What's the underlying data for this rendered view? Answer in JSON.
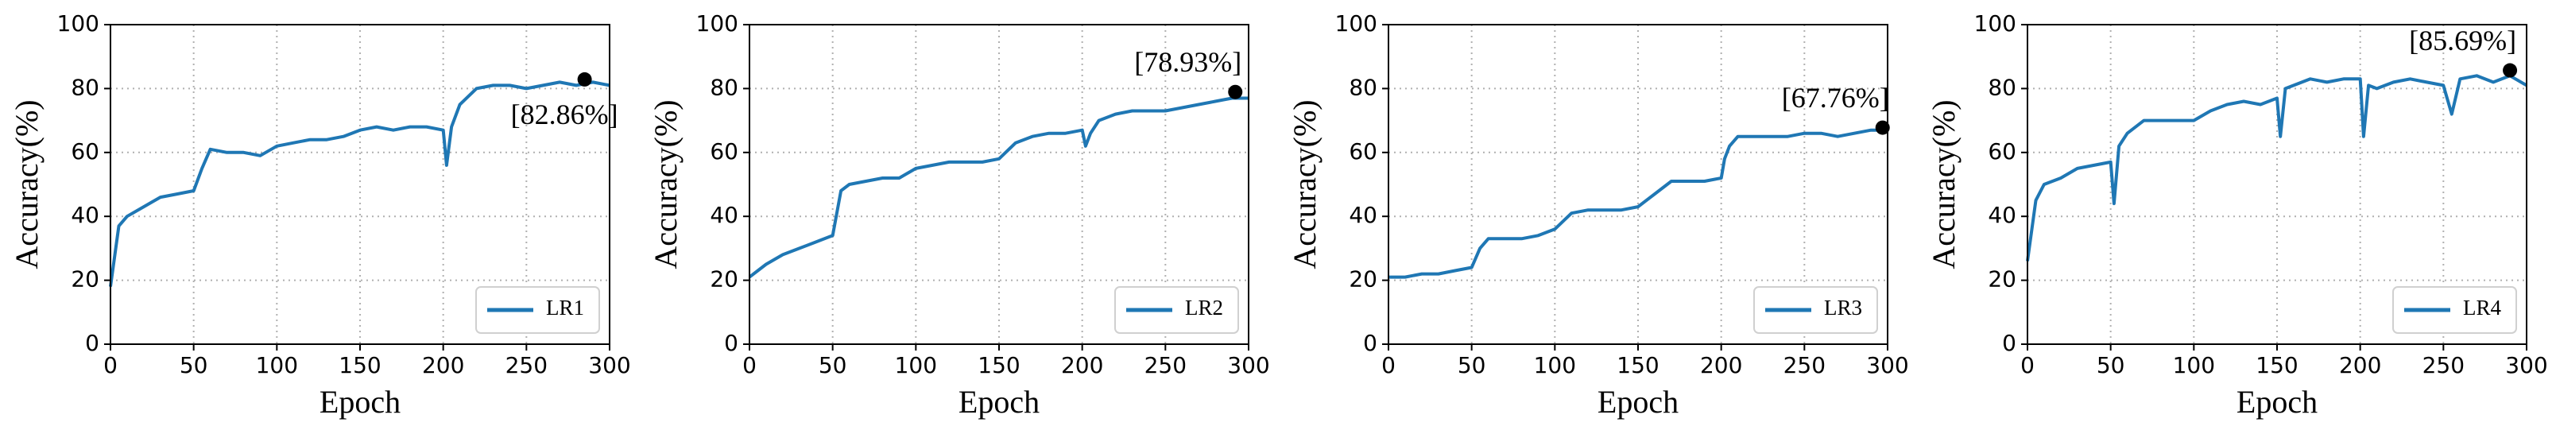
{
  "chart_data": [
    {
      "type": "line",
      "xlabel": "Epoch",
      "ylabel": "Accuracy(%)",
      "x": [
        0,
        5,
        10,
        20,
        30,
        40,
        50,
        55,
        60,
        70,
        80,
        90,
        100,
        110,
        120,
        130,
        140,
        150,
        160,
        170,
        180,
        190,
        200,
        202,
        205,
        210,
        220,
        230,
        240,
        250,
        260,
        270,
        280,
        290,
        300
      ],
      "series": [
        {
          "name": "LR1",
          "color": "#1f77b4",
          "values": [
            18,
            37,
            40,
            43,
            46,
            47,
            48,
            55,
            61,
            60,
            60,
            59,
            62,
            63,
            64,
            64,
            65,
            67,
            68,
            67,
            68,
            68,
            67,
            56,
            68,
            75,
            80,
            81,
            81,
            80,
            81,
            82,
            81,
            82,
            81
          ]
        }
      ],
      "annotations": [
        {
          "text": "[82.86%]",
          "x": 285,
          "y": 82.86
        }
      ],
      "xlim": [
        0,
        300
      ],
      "xticks": [
        0,
        50,
        100,
        150,
        200,
        250,
        300
      ],
      "ylim": [
        0,
        100
      ],
      "yticks": [
        0,
        20,
        40,
        60,
        80,
        100
      ],
      "grid": true,
      "legend": "lower right"
    },
    {
      "type": "line",
      "xlabel": "Epoch",
      "ylabel": "Accuracy(%)",
      "x": [
        0,
        5,
        10,
        20,
        30,
        40,
        50,
        55,
        60,
        70,
        80,
        90,
        100,
        110,
        120,
        130,
        140,
        150,
        160,
        170,
        180,
        190,
        200,
        202,
        205,
        210,
        220,
        230,
        240,
        250,
        260,
        270,
        280,
        290,
        300
      ],
      "series": [
        {
          "name": "LR2",
          "color": "#1f77b4",
          "values": [
            21,
            23,
            25,
            28,
            30,
            32,
            34,
            48,
            50,
            51,
            52,
            52,
            55,
            56,
            57,
            57,
            57,
            58,
            63,
            65,
            66,
            66,
            67,
            62,
            66,
            70,
            72,
            73,
            73,
            73,
            74,
            75,
            76,
            77,
            77
          ]
        }
      ],
      "annotations": [
        {
          "text": "[78.93%]",
          "x": 292,
          "y": 78.93
        }
      ],
      "xlim": [
        0,
        300
      ],
      "xticks": [
        0,
        50,
        100,
        150,
        200,
        250,
        300
      ],
      "ylim": [
        0,
        100
      ],
      "yticks": [
        0,
        20,
        40,
        60,
        80,
        100
      ],
      "grid": true,
      "legend": "lower right"
    },
    {
      "type": "line",
      "xlabel": "Epoch",
      "ylabel": "Accuracy(%)",
      "x": [
        0,
        5,
        10,
        20,
        30,
        40,
        50,
        55,
        60,
        70,
        80,
        90,
        100,
        110,
        120,
        130,
        140,
        150,
        160,
        170,
        180,
        190,
        200,
        202,
        205,
        210,
        220,
        230,
        240,
        250,
        260,
        270,
        280,
        290,
        300
      ],
      "series": [
        {
          "name": "LR3",
          "color": "#1f77b4",
          "values": [
            21,
            21,
            21,
            22,
            22,
            23,
            24,
            30,
            33,
            33,
            33,
            34,
            36,
            41,
            42,
            42,
            42,
            43,
            47,
            51,
            51,
            51,
            52,
            58,
            62,
            65,
            65,
            65,
            65,
            66,
            66,
            65,
            66,
            67,
            67
          ]
        }
      ],
      "annotations": [
        {
          "text": "[67.76%]",
          "x": 297,
          "y": 67.76
        }
      ],
      "xlim": [
        0,
        300
      ],
      "xticks": [
        0,
        50,
        100,
        150,
        200,
        250,
        300
      ],
      "ylim": [
        0,
        100
      ],
      "yticks": [
        0,
        20,
        40,
        60,
        80,
        100
      ],
      "grid": true,
      "legend": "lower right"
    },
    {
      "type": "line",
      "xlabel": "Epoch",
      "ylabel": "Accuracy(%)",
      "x": [
        0,
        5,
        10,
        20,
        30,
        40,
        50,
        52,
        55,
        60,
        70,
        80,
        90,
        100,
        110,
        120,
        130,
        140,
        150,
        152,
        155,
        160,
        170,
        180,
        190,
        200,
        202,
        205,
        210,
        220,
        230,
        240,
        250,
        255,
        260,
        270,
        280,
        290,
        300
      ],
      "series": [
        {
          "name": "LR4",
          "color": "#1f77b4",
          "values": [
            26,
            45,
            50,
            52,
            55,
            56,
            57,
            44,
            62,
            66,
            70,
            70,
            70,
            70,
            73,
            75,
            76,
            75,
            77,
            65,
            80,
            81,
            83,
            82,
            83,
            83,
            65,
            81,
            80,
            82,
            83,
            82,
            81,
            72,
            83,
            84,
            82,
            84,
            81
          ]
        }
      ],
      "annotations": [
        {
          "text": "[85.69%]",
          "x": 290,
          "y": 85.69
        }
      ],
      "xlim": [
        0,
        300
      ],
      "xticks": [
        0,
        50,
        100,
        150,
        200,
        250,
        300
      ],
      "ylim": [
        0,
        100
      ],
      "yticks": [
        0,
        20,
        40,
        60,
        80,
        100
      ],
      "grid": true,
      "legend": "lower right"
    }
  ]
}
